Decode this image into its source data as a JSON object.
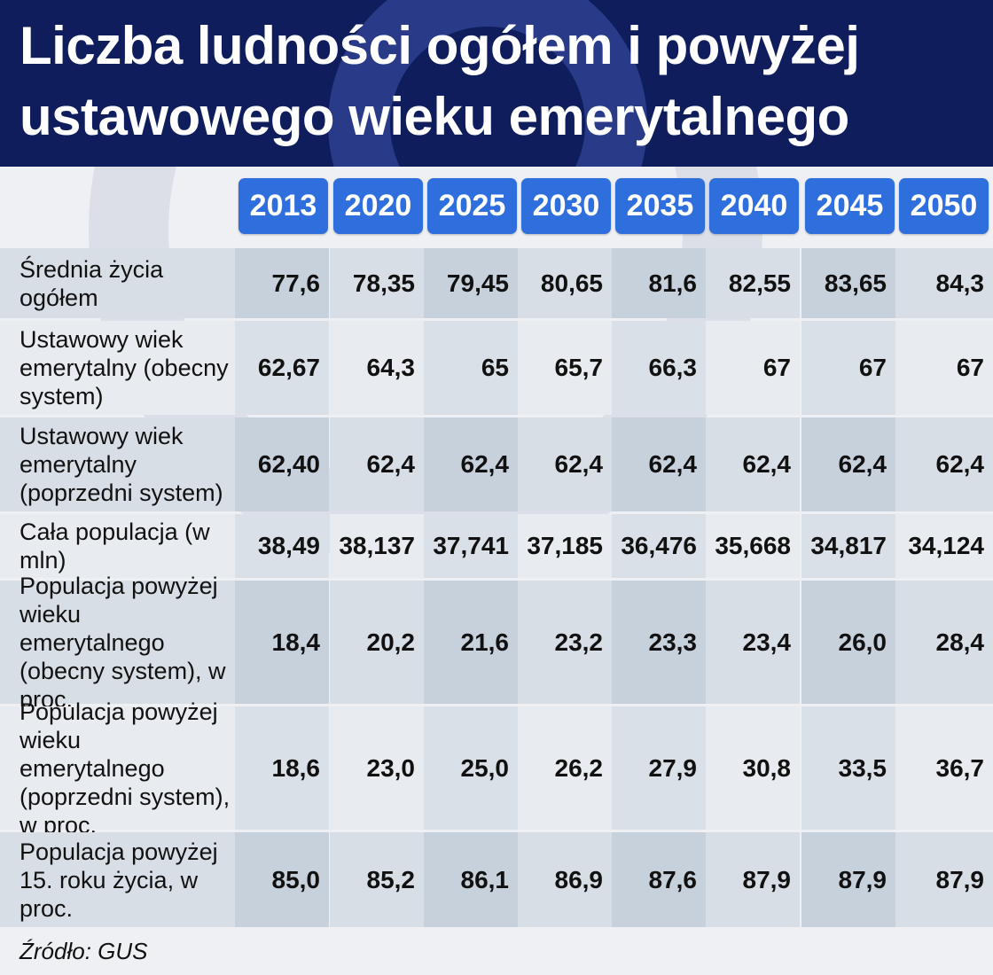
{
  "title": {
    "line1": "Liczba ludności ogółem i powyżej",
    "line2": "ustawowego wieku emerytalnego"
  },
  "source": "Źródło: GUS",
  "colors": {
    "header_bg": "#0f1d5c",
    "year_badge": "#2f6fdd",
    "text": "#111111"
  },
  "chart_data": {
    "type": "table",
    "title": "Liczba ludności ogółem i powyżej ustawowego wieku emerytalnego",
    "columns": [
      "2013",
      "2020",
      "2025",
      "2030",
      "2035",
      "2040",
      "2045",
      "2050"
    ],
    "rows": [
      {
        "label": "Średnia życia ogółem",
        "values": [
          "77,6",
          "78,35",
          "79,45",
          "80,65",
          "81,6",
          "82,55",
          "83,65",
          "84,3"
        ]
      },
      {
        "label": "Ustawowy wiek emerytalny (obecny system)",
        "values": [
          "62,67",
          "64,3",
          "65",
          "65,7",
          "66,3",
          "67",
          "67",
          "67"
        ]
      },
      {
        "label": "Ustawowy wiek emerytalny (poprzedni system)",
        "values": [
          "62,40",
          "62,4",
          "62,4",
          "62,4",
          "62,4",
          "62,4",
          "62,4",
          "62,4"
        ]
      },
      {
        "label": "Cała populacja (w mln)",
        "values": [
          "38,49",
          "38,137",
          "37,741",
          "37,185",
          "36,476",
          "35,668",
          "34,817",
          "34,124"
        ]
      },
      {
        "label": "Populacja powyżej wieku emerytalnego (obecny system), w proc.",
        "values": [
          "18,4",
          "20,2",
          "21,6",
          "23,2",
          "23,3",
          "23,4",
          "26,0",
          "28,4"
        ]
      },
      {
        "label": "Populacja powyżej wieku emerytalnego (poprzedni system), w proc.",
        "values": [
          "18,6",
          "23,0",
          "25,0",
          "26,2",
          "27,9",
          "30,8",
          "33,5",
          "36,7"
        ]
      },
      {
        "label": "Populacja powyżej 15. roku życia, w proc.",
        "values": [
          "85,0",
          "85,2",
          "86,1",
          "86,9",
          "87,6",
          "87,9",
          "87,9",
          "87,9"
        ]
      }
    ],
    "source": "Źródło: GUS"
  }
}
